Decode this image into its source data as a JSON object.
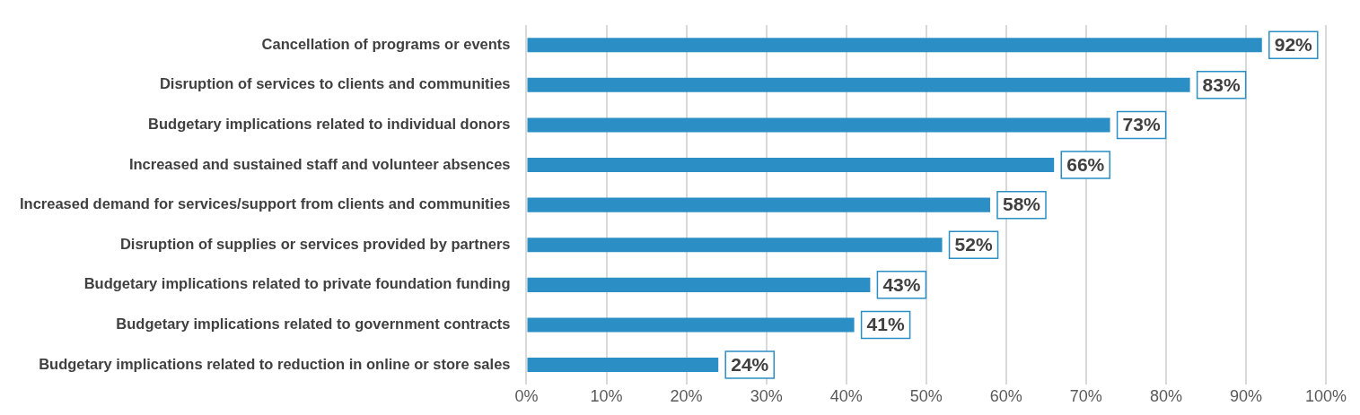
{
  "chart_data": {
    "type": "bar",
    "orientation": "horizontal",
    "categories": [
      "Cancellation of programs or events",
      "Disruption of services to clients and communities",
      "Budgetary implications related to individual donors",
      "Increased and sustained staff and volunteer absences",
      "Increased demand for services/support from clients and communities",
      "Disruption of supplies or services provided by partners",
      "Budgetary implications related to private foundation funding",
      "Budgetary implications related to government contracts",
      "Budgetary implications related to reduction in online or store sales"
    ],
    "values": [
      92,
      83,
      73,
      66,
      58,
      52,
      43,
      41,
      24
    ],
    "value_labels": [
      "92%",
      "83%",
      "73%",
      "66%",
      "58%",
      "52%",
      "43%",
      "41%",
      "24%"
    ],
    "color": "#2b8fc5",
    "xlim": [
      0,
      100
    ],
    "xticks": [
      {
        "value": 0,
        "label": "0%"
      },
      {
        "value": 10,
        "label": "10%"
      },
      {
        "value": 20,
        "label": "20%"
      },
      {
        "value": 30,
        "label": "30%"
      },
      {
        "value": 40,
        "label": "40%"
      },
      {
        "value": 50,
        "label": "50%"
      },
      {
        "value": 60,
        "label": "60%"
      },
      {
        "value": 70,
        "label": "70%"
      },
      {
        "value": 80,
        "label": "80%"
      },
      {
        "value": 90,
        "label": "90%"
      },
      {
        "value": 100,
        "label": "100%"
      }
    ],
    "grid": "x"
  }
}
